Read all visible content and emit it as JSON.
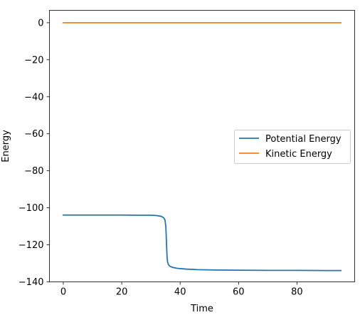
{
  "chart_data": {
    "type": "line",
    "title": "",
    "xlabel": "Time",
    "ylabel": "Energy",
    "xlim": [
      -4.75,
      99.75
    ],
    "ylim": [
      -140,
      6.7
    ],
    "xticks": [
      0,
      20,
      40,
      60,
      80
    ],
    "yticks": [
      0,
      -20,
      -40,
      -60,
      -80,
      -100,
      -120,
      -140
    ],
    "xtick_labels": [
      "0",
      "20",
      "40",
      "60",
      "80"
    ],
    "ytick_labels": [
      "0",
      "−20",
      "−40",
      "−60",
      "−80",
      "−100",
      "−120",
      "−140"
    ],
    "grid": false,
    "legend_position": "center-right",
    "series": [
      {
        "name": "Potential Energy",
        "color": "#1f77b4",
        "x": [
          0,
          5,
          10,
          15,
          20,
          25,
          30,
          32,
          33.5,
          34.3,
          34.8,
          35.1,
          35.3,
          35.5,
          35.7,
          36.0,
          36.5,
          37.5,
          39,
          42,
          46,
          52,
          60,
          70,
          80,
          90,
          95
        ],
        "y": [
          -103.9,
          -103.9,
          -103.9,
          -103.9,
          -103.9,
          -104.0,
          -104.0,
          -104.2,
          -104.6,
          -105.3,
          -106.5,
          -110.0,
          -118.0,
          -126.0,
          -129.3,
          -130.7,
          -131.6,
          -132.2,
          -132.7,
          -133.1,
          -133.4,
          -133.6,
          -133.7,
          -133.8,
          -133.8,
          -133.9,
          -133.9
        ]
      },
      {
        "name": "Kinetic Energy",
        "color": "#ff7f0e",
        "x": [
          0,
          95
        ],
        "y": [
          0,
          0
        ]
      }
    ]
  }
}
